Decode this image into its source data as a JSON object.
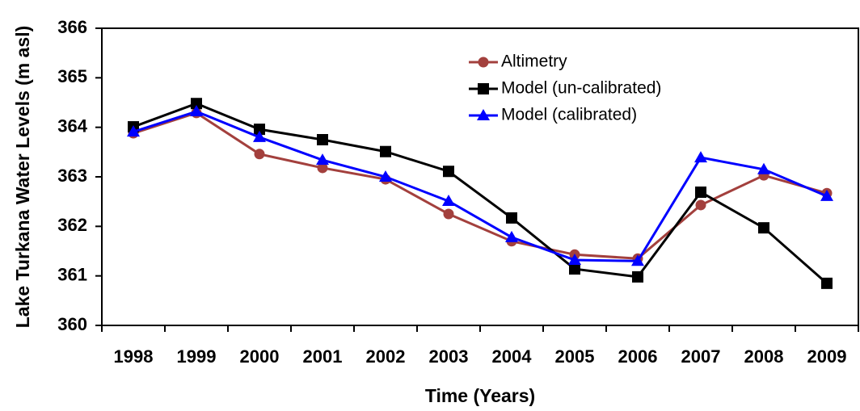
{
  "chart_data": {
    "type": "line",
    "x_label": "Time (Years)",
    "y_label": "Lake Turkana Water Levels (m asl)",
    "categories": [
      "1998",
      "1999",
      "2000",
      "2001",
      "2002",
      "2003",
      "2004",
      "2005",
      "2006",
      "2007",
      "2008",
      "2009"
    ],
    "series": [
      {
        "name": "Altimetry",
        "color": "#a3403d",
        "marker": "circle",
        "values": [
          363.88,
          364.29,
          363.46,
          363.18,
          362.95,
          362.25,
          361.7,
          361.43,
          361.35,
          362.43,
          363.03,
          362.67
        ]
      },
      {
        "name": "Model (un-calibrated)",
        "color": "#000000",
        "marker": "square",
        "values": [
          364.01,
          364.48,
          363.96,
          363.75,
          363.51,
          363.11,
          362.17,
          361.14,
          360.98,
          362.69,
          361.97,
          360.85
        ]
      },
      {
        "name": "Model (calibrated)",
        "color": "#0000ff",
        "marker": "triangle",
        "values": [
          363.91,
          364.32,
          363.8,
          363.34,
          363.0,
          362.51,
          361.78,
          361.32,
          361.3,
          363.39,
          363.15,
          362.61
        ]
      }
    ],
    "ylim": [
      360,
      366
    ],
    "yticks": [
      360,
      361,
      362,
      363,
      364,
      365,
      366
    ],
    "grid": false,
    "legend": "upper center"
  }
}
